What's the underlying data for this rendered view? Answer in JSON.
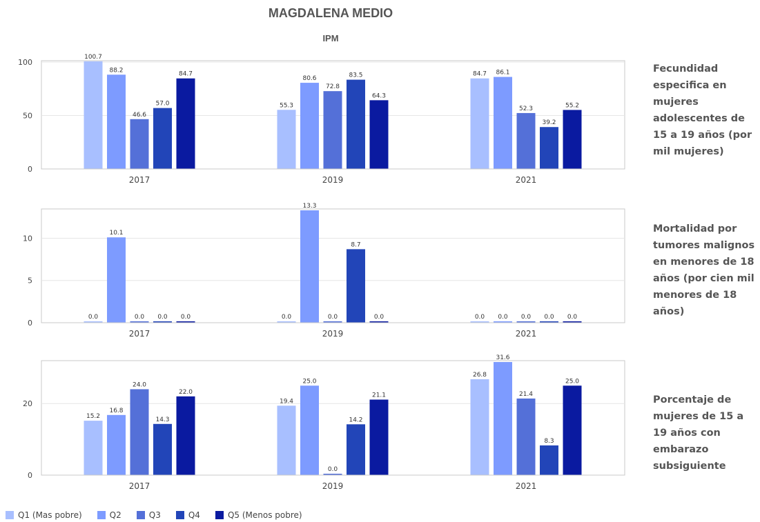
{
  "title": "MAGDALENA MEDIO",
  "subtitle": "IPM",
  "colors": [
    "#a8bfff",
    "#7d9bff",
    "#5470d8",
    "#2245b8",
    "#0a1aa0"
  ],
  "legend": [
    "Q1 (Mas pobre)",
    "Q2",
    "Q3",
    "Q4",
    "Q5 (Menos pobre)"
  ],
  "chart_data": [
    {
      "type": "bar",
      "label": "Fecundidad especifica en mujeres adolescentes de 15 a 19 años (por mil mujeres)",
      "categories": [
        "2017",
        "2019",
        "2021"
      ],
      "ylim": [
        0,
        100
      ],
      "yticks": [
        0,
        50,
        100
      ],
      "series": [
        {
          "name": "Q1 (Mas pobre)",
          "values": [
            100.7,
            55.3,
            84.7
          ]
        },
        {
          "name": "Q2",
          "values": [
            88.2,
            80.6,
            86.1
          ]
        },
        {
          "name": "Q3",
          "values": [
            46.6,
            72.8,
            52.3
          ]
        },
        {
          "name": "Q4",
          "values": [
            57.0,
            83.5,
            39.2
          ]
        },
        {
          "name": "Q5 (Menos pobre)",
          "values": [
            84.7,
            64.3,
            55.2
          ]
        }
      ]
    },
    {
      "type": "bar",
      "label": "Mortalidad por tumores malignos en menores de 18 años (por cien mil menores de 18 años)",
      "categories": [
        "2017",
        "2019",
        "2021"
      ],
      "ylim": [
        0,
        13.3
      ],
      "yticks": [
        0,
        5,
        10
      ],
      "series": [
        {
          "name": "Q1 (Mas pobre)",
          "values": [
            0.0,
            0.0,
            0.0
          ]
        },
        {
          "name": "Q2",
          "values": [
            10.1,
            13.3,
            0.0
          ]
        },
        {
          "name": "Q3",
          "values": [
            0.0,
            0.0,
            0.0
          ]
        },
        {
          "name": "Q4",
          "values": [
            0.0,
            8.7,
            0.0
          ]
        },
        {
          "name": "Q5 (Menos pobre)",
          "values": [
            0.0,
            0.0,
            0.0
          ]
        }
      ]
    },
    {
      "type": "bar",
      "label": "Porcentaje de mujeres de 15 a 19 años con embarazo subsiguiente",
      "categories": [
        "2017",
        "2019",
        "2021"
      ],
      "ylim": [
        0,
        31.6
      ],
      "yticks": [
        0,
        20
      ],
      "series": [
        {
          "name": "Q1 (Mas pobre)",
          "values": [
            15.2,
            19.4,
            26.8
          ]
        },
        {
          "name": "Q2",
          "values": [
            16.8,
            25.0,
            31.6
          ]
        },
        {
          "name": "Q3",
          "values": [
            24.0,
            0.0,
            21.4
          ]
        },
        {
          "name": "Q4",
          "values": [
            14.3,
            14.2,
            8.3
          ]
        },
        {
          "name": "Q5 (Menos pobre)",
          "values": [
            22.0,
            21.1,
            25.0
          ]
        }
      ]
    }
  ]
}
